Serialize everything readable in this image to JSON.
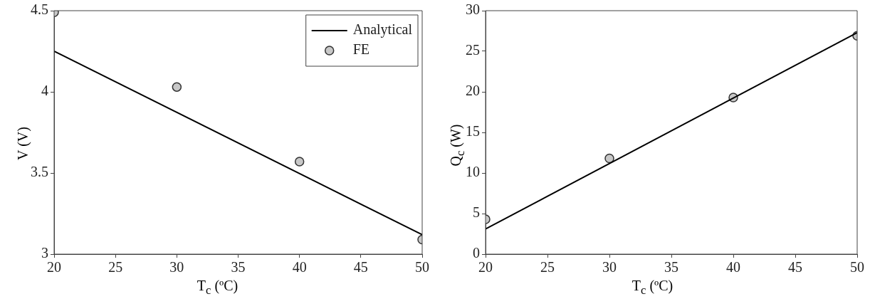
{
  "chart_data": [
    {
      "type": "scatter",
      "xlabel": "T$_{c}$ (ºC)",
      "ylabel": "V (V)",
      "xlim": [
        20,
        50
      ],
      "xticks": [
        20,
        25,
        30,
        35,
        40,
        45,
        50
      ],
      "ylim": [
        3,
        4.5
      ],
      "yticks": [
        3,
        3.5,
        4,
        4.5
      ],
      "grid": false,
      "legend": "top right",
      "series": [
        {
          "name": "Analytical",
          "type": "line",
          "marker": "none",
          "color": "#000000",
          "x": [
            20,
            50
          ],
          "values": [
            4.25,
            3.12
          ]
        },
        {
          "name": "FE",
          "type": "scatter",
          "marker": "circle",
          "color": "#c8c8c8",
          "x": [
            20,
            30,
            40,
            50
          ],
          "values": [
            4.49,
            4.03,
            3.57,
            3.09
          ]
        }
      ]
    },
    {
      "type": "scatter",
      "xlabel": "T$_{c}$ (ºC)",
      "ylabel": "Q$_{c}$ (W)",
      "xlim": [
        20,
        50
      ],
      "xticks": [
        20,
        25,
        30,
        35,
        40,
        45,
        50
      ],
      "ylim": [
        0,
        30
      ],
      "yticks": [
        0,
        5,
        10,
        15,
        20,
        25,
        30
      ],
      "grid": false,
      "legend": false,
      "series": [
        {
          "type": "line",
          "marker": "none",
          "color": "#000000",
          "x": [
            20,
            50
          ],
          "values": [
            3.1,
            27.3
          ]
        },
        {
          "type": "scatter",
          "marker": "circle",
          "color": "#c8c8c8",
          "x": [
            20,
            30,
            40,
            50
          ],
          "values": [
            4.3,
            11.8,
            19.3,
            26.9
          ]
        }
      ]
    }
  ]
}
